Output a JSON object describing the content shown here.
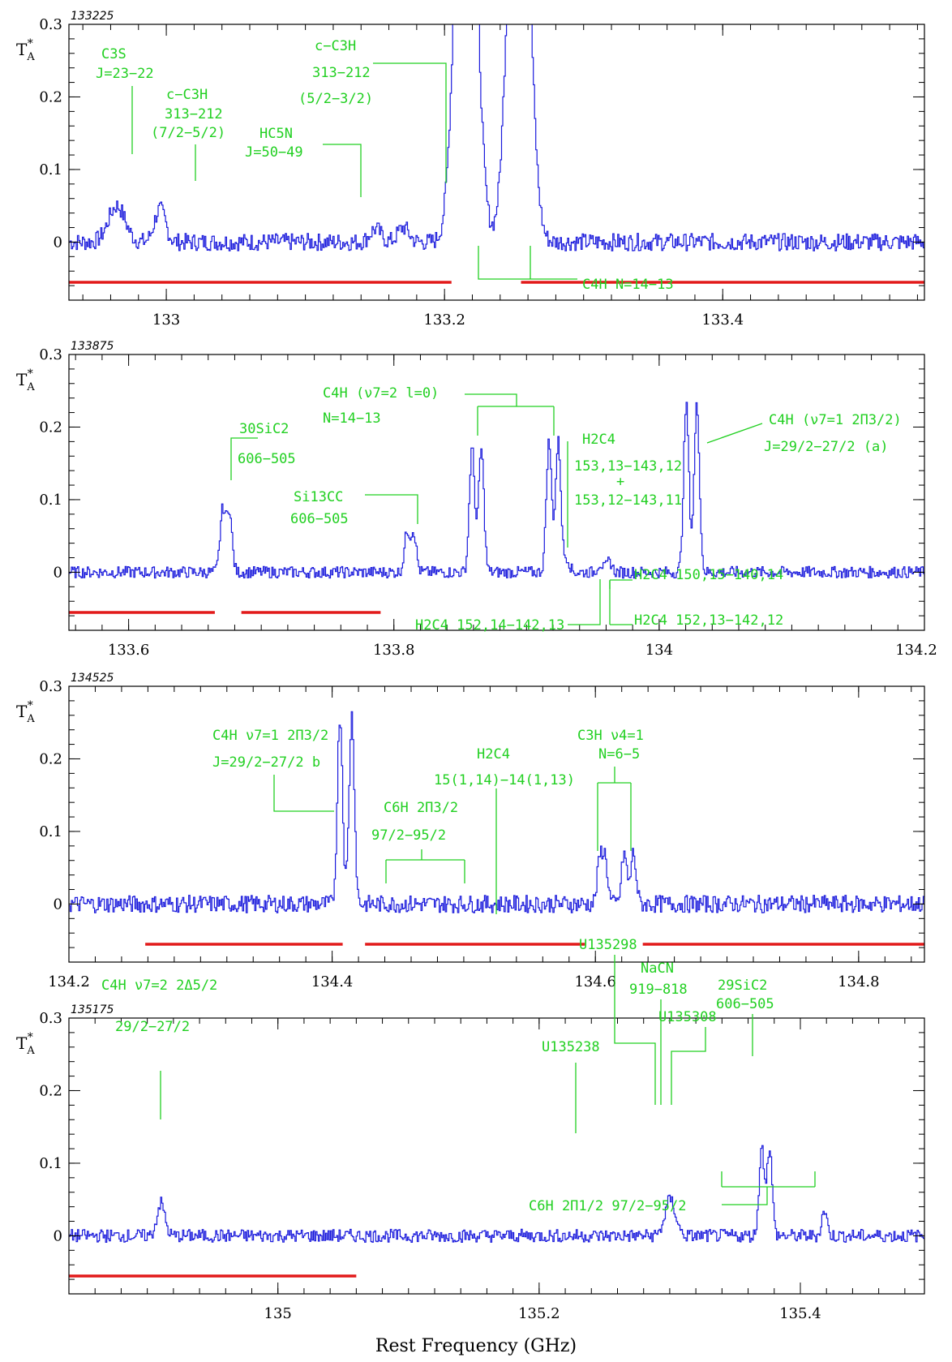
{
  "chart_data": [
    {
      "type": "line",
      "scan_label": "133225",
      "xlabel": "",
      "ylabel": "T_A^*",
      "xlim": [
        132.93,
        133.545
      ],
      "ylim": [
        -0.08,
        0.3
      ],
      "xticks": [
        "133",
        "133.2",
        "133.4"
      ],
      "yticks": [
        "0",
        "0.1",
        "0.2",
        "0.3"
      ],
      "lines": [
        {
          "name": "C3S J=23-22",
          "center": 132.964,
          "height": 0.05,
          "width": 0.006,
          "split": 0
        },
        {
          "name": "c-C3H 313-212 (7/2-5/2)",
          "center": 132.995,
          "height": 0.045,
          "width": 0.004,
          "split": 0
        },
        {
          "name": "HC5N J=50-49",
          "center": 133.15,
          "height": 0.018,
          "width": 0.004,
          "split": 0
        },
        {
          "name": "c-C3H 313-212 (5/2-3/2)",
          "center": 133.17,
          "height": 0.02,
          "width": 0.004,
          "split": 0
        },
        {
          "name": "C4H N=14-13",
          "center": 133.215,
          "height": 0.42,
          "width": 0.006,
          "split": 0.006
        },
        {
          "name": "C4H N=14-13",
          "center": 133.253,
          "height": 0.42,
          "width": 0.006,
          "split": 0.006
        }
      ],
      "noise": 0.012,
      "baseline_segments": [
        [
          132.93,
          133.205
        ],
        [
          133.255,
          133.545
        ]
      ]
    },
    {
      "type": "line",
      "scan_label": "133875",
      "xlabel": "",
      "ylabel": "T_A^*",
      "xlim": [
        133.555,
        134.2
      ],
      "ylim": [
        -0.08,
        0.3
      ],
      "xticks": [
        "133.6",
        "133.8",
        "134",
        "134.2"
      ],
      "yticks": [
        "0",
        "0.1",
        "0.2",
        "0.3"
      ],
      "lines": [
        {
          "name": "30SiC2 606-505",
          "center": 133.673,
          "height": 0.085,
          "width": 0.002,
          "split": 0.005
        },
        {
          "name": "Si13CC 606-505",
          "center": 133.812,
          "height": 0.055,
          "width": 0.002,
          "split": 0.005
        },
        {
          "name": "C4H (v7=2 l=0) N=14-13",
          "center": 133.862,
          "height": 0.17,
          "width": 0.002,
          "split": 0.007
        },
        {
          "name": "C4H (v7=2 l=0) N=14-13",
          "center": 133.92,
          "height": 0.18,
          "width": 0.002,
          "split": 0.007
        },
        {
          "name": "H2C4 15 3,13-14 3,12 + 15 3,12-14 3,11",
          "center": 133.93,
          "height": 0.02,
          "width": 0.002,
          "split": 0
        },
        {
          "name": "H2C4 15 2,14-14 2,13",
          "center": 133.955,
          "height": 0.012,
          "width": 0.002,
          "split": 0
        },
        {
          "name": "H2C4 15 0,15-14 0,14",
          "center": 133.962,
          "height": 0.015,
          "width": 0.002,
          "split": 0
        },
        {
          "name": "C4H (v7=1 2Pi3/2) J=29/2-27/2 (a)",
          "center": 134.024,
          "height": 0.23,
          "width": 0.002,
          "split": 0.008
        }
      ],
      "noise": 0.008,
      "baseline_segments": [
        [
          133.555,
          133.665
        ],
        [
          133.685,
          133.79
        ]
      ]
    },
    {
      "type": "line",
      "scan_label": "134525",
      "xlabel": "",
      "ylabel": "T_A^*",
      "xlim": [
        134.2,
        134.85
      ],
      "ylim": [
        -0.08,
        0.3
      ],
      "xticks": [
        "134.2",
        "134.4",
        "134.6",
        "134.8"
      ],
      "yticks": [
        "0",
        "0.1",
        "0.2",
        "0.3"
      ],
      "lines": [
        {
          "name": "C4H v7=1 2Pi3/2 J=29/2-27/2 b",
          "center": 134.41,
          "height": 0.26,
          "width": 0.002,
          "split": 0.009
        },
        {
          "name": "C3H v4=1 N=6-5",
          "center": 134.605,
          "height": 0.06,
          "width": 0.002,
          "split": 0.004
        },
        {
          "name": "C3H v4=1 N=6-5",
          "center": 134.625,
          "height": 0.07,
          "width": 0.002,
          "split": 0.007
        }
      ],
      "noise": 0.012,
      "baseline_segments": [
        [
          134.258,
          134.408
        ],
        [
          134.425,
          134.592
        ],
        [
          134.636,
          134.85
        ]
      ]
    },
    {
      "type": "line",
      "scan_label": "135175",
      "xlabel": "Rest Frequency (GHz)",
      "ylabel": "T_A^*",
      "xlim": [
        134.84,
        135.495
      ],
      "ylim": [
        -0.08,
        0.3
      ],
      "xticks": [
        "135",
        "135.2",
        "135.4"
      ],
      "yticks": [
        "0",
        "0.1",
        "0.2",
        "0.3"
      ],
      "lines": [
        {
          "name": "C4H v7=2 2Delta5/2 29/2-27/2",
          "center": 134.91,
          "height": 0.045,
          "width": 0.003,
          "split": 0
        },
        {
          "name": "NaCN 919-818",
          "center": 135.3,
          "height": 0.05,
          "width": 0.004,
          "split": 0
        },
        {
          "name": "29SiC2 606-505",
          "center": 135.373,
          "height": 0.12,
          "width": 0.002,
          "split": 0.006
        },
        {
          "name": "C6H 2Pi1/2 97/2-95/2",
          "center": 135.418,
          "height": 0.035,
          "width": 0.002,
          "split": 0
        }
      ],
      "noise": 0.009,
      "baseline_segments": [
        [
          134.84,
          135.06
        ]
      ]
    }
  ],
  "annotations": {
    "p1": {
      "c3s": [
        "C3S",
        "J=23−22"
      ],
      "cc3h_a": [
        "c−C3H",
        "313−212",
        "(7/2−5/2)"
      ],
      "hc5n": [
        "HC5N",
        "J=50−49"
      ],
      "cc3h_b": [
        "c−C3H",
        "313−212",
        "(5/2−3/2)"
      ],
      "c4h": "C4H  N=14−13"
    },
    "p2": {
      "sic2_30": [
        "30SiC2",
        "606−505"
      ],
      "si13cc": [
        "Si13CC",
        "606−505"
      ],
      "c4h_v7_2": [
        "C4H (ν7=2 l=0)",
        "N=14−13"
      ],
      "h2c4_a": [
        "H2C4",
        "153,13−143,12",
        "+",
        "153,12−143,11"
      ],
      "c4h_v7_1a": [
        "C4H (ν7=1 2Π3/2)",
        "J=29/2−27/2 (a)"
      ],
      "h2c4_b": "H2C4  150,15−140,14",
      "h2c4_c": "H2C4  152,14−142,13",
      "h2c4_d": "H2C4  152,13−142,12"
    },
    "p3": {
      "c4h_b": [
        "C4H ν7=1 2Π3/2",
        "J=29/2−27/2 b"
      ],
      "c6h": [
        "C6H 2Π3/2",
        "97/2−95/2"
      ],
      "h2c4": [
        "H2C4",
        "15(1,14)−14(1,13)"
      ],
      "c3h": [
        "C3H  ν4=1",
        "N=6−5"
      ]
    },
    "p4": {
      "c4h": [
        "C4H ν7=2 2Δ5/2",
        "29/2−27/2"
      ],
      "u135298": "U135298",
      "nacn": [
        "NaCN",
        "919−818"
      ],
      "u135308": "U135308",
      "u135238": "U135238",
      "sic2_29": [
        "29SiC2",
        "606−505"
      ],
      "c6h": "C6H 2Π1/2 97/2−95/2"
    }
  },
  "colors": {
    "spectrum": "#1a1adc",
    "annotation": "#22d022",
    "baseline": "#e21a1a"
  }
}
